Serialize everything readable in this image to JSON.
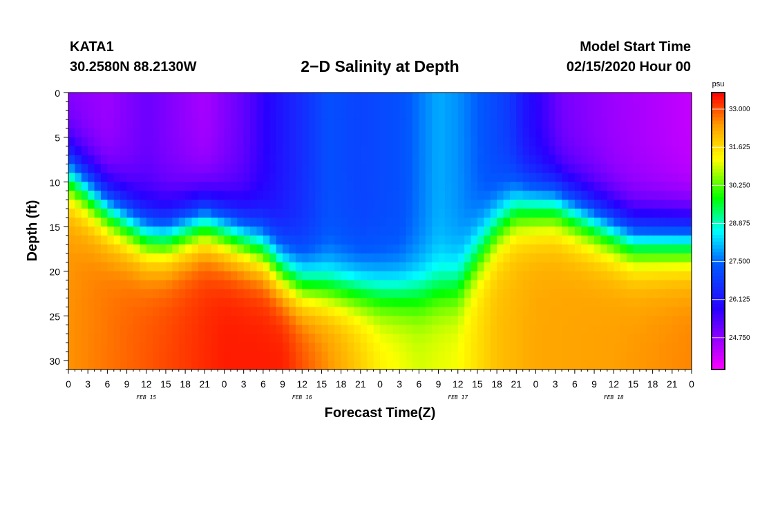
{
  "header": {
    "station": "KATA1",
    "coords": "30.2580N 88.2130W",
    "title": "2−D Salinity at Depth",
    "start_label": "Model Start Time",
    "start_value": "02/15/2020 Hour 00"
  },
  "chart_data": {
    "type": "heatmap",
    "title": "2−D Salinity at Depth",
    "xlabel": "Forecast Time(Z)",
    "ylabel": "Depth (ft)",
    "x_range_hours": [
      0,
      96
    ],
    "y_range_ft": [
      0,
      31
    ],
    "x_tick_step_hours": 3,
    "x_tick_labels": [
      "0",
      "3",
      "6",
      "9",
      "12",
      "15",
      "18",
      "21",
      "0",
      "3",
      "6",
      "9",
      "12",
      "15",
      "18",
      "21",
      "0",
      "3",
      "6",
      "9",
      "12",
      "15",
      "18",
      "21",
      "0",
      "3",
      "6",
      "9",
      "12",
      "15",
      "18",
      "21",
      "0"
    ],
    "y_ticks": [
      0,
      5,
      10,
      15,
      20,
      25,
      30
    ],
    "y_tick_labels": [
      "0",
      "5",
      "10",
      "15",
      "20",
      "25",
      "30"
    ],
    "date_labels": [
      {
        "text": "FEB 15",
        "hour": 12
      },
      {
        "text": "FEB 16",
        "hour": 36
      },
      {
        "text": "FEB 17",
        "hour": 60
      },
      {
        "text": "FEB 18",
        "hour": 84
      }
    ],
    "colorbar": {
      "unit": "psu",
      "range": [
        23.6,
        33.6
      ],
      "ticks": [
        33.0,
        31.625,
        30.25,
        28.875,
        27.5,
        26.125,
        24.75
      ],
      "tick_labels": [
        "33.000",
        "31.625",
        "30.250",
        "28.875",
        "27.500",
        "26.125",
        "24.750"
      ]
    },
    "surface_salinity_psu": [
      {
        "hour": 0,
        "value": 24.8
      },
      {
        "hour": 6,
        "value": 24.6
      },
      {
        "hour": 12,
        "value": 25.1
      },
      {
        "hour": 21,
        "value": 24.5
      },
      {
        "hour": 27,
        "value": 25.2
      },
      {
        "hour": 33,
        "value": 26.2
      },
      {
        "hour": 36,
        "value": 26.6
      },
      {
        "hour": 40,
        "value": 27.2
      },
      {
        "hour": 45,
        "value": 27.0
      },
      {
        "hour": 51,
        "value": 27.2
      },
      {
        "hour": 57,
        "value": 28.0
      },
      {
        "hour": 60,
        "value": 27.8
      },
      {
        "hour": 68,
        "value": 26.8
      },
      {
        "hour": 70,
        "value": 26.2
      },
      {
        "hour": 72,
        "value": 25.8
      },
      {
        "hour": 76,
        "value": 25.0
      },
      {
        "hour": 84,
        "value": 24.6
      },
      {
        "hour": 90,
        "value": 24.4
      },
      {
        "hour": 96,
        "value": 24.2
      }
    ],
    "halocline_depth_ft": [
      {
        "hour": 0,
        "value": 9
      },
      {
        "hour": 6,
        "value": 13
      },
      {
        "hour": 12,
        "value": 16
      },
      {
        "hour": 15,
        "value": 16.2
      },
      {
        "hour": 21,
        "value": 14.5
      },
      {
        "hour": 24,
        "value": 15.5
      },
      {
        "hour": 30,
        "value": 17.5
      },
      {
        "hour": 33,
        "value": 20
      },
      {
        "hour": 36,
        "value": 21.5
      },
      {
        "hour": 42,
        "value": 22
      },
      {
        "hour": 48,
        "value": 22.3
      },
      {
        "hour": 54,
        "value": 22.2
      },
      {
        "hour": 60,
        "value": 21.5
      },
      {
        "hour": 63,
        "value": 18
      },
      {
        "hour": 66,
        "value": 15
      },
      {
        "hour": 69,
        "value": 13
      },
      {
        "hour": 75,
        "value": 12.5
      },
      {
        "hour": 81,
        "value": 14.5
      },
      {
        "hour": 87,
        "value": 16.5
      },
      {
        "hour": 96,
        "value": 16.5
      }
    ],
    "bottom_salinity_psu": [
      {
        "hour": 0,
        "value": 32.5
      },
      {
        "hour": 24,
        "value": 33.4
      },
      {
        "hour": 33,
        "value": 33.4
      },
      {
        "hour": 42,
        "value": 32.3
      },
      {
        "hour": 48,
        "value": 31.4
      },
      {
        "hour": 54,
        "value": 31.0
      },
      {
        "hour": 60,
        "value": 31.2
      },
      {
        "hour": 66,
        "value": 32.0
      },
      {
        "hour": 72,
        "value": 32.3
      },
      {
        "hour": 84,
        "value": 32.4
      },
      {
        "hour": 96,
        "value": 32.6
      }
    ]
  }
}
